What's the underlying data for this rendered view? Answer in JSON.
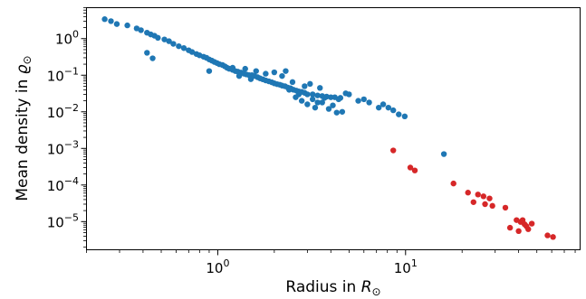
{
  "chart_data": {
    "type": "scatter",
    "xlabel_prefix": "Radius in ",
    "xlabel_symbol": "R",
    "ylabel_prefix": "Mean density in ",
    "ylabel_symbol": "ϱ",
    "subscript_symbol": "⊙",
    "xscale": "log",
    "yscale": "log",
    "xlim": [
      0.2,
      85
    ],
    "ylim": [
      1.7e-06,
      7
    ],
    "grid": false,
    "legend": "none",
    "x_ticks": [
      {
        "value": 1,
        "base": "10",
        "exp": "0"
      },
      {
        "value": 10,
        "base": "10",
        "exp": "1"
      }
    ],
    "y_ticks": [
      {
        "value": 1,
        "base": "10",
        "exp": "0"
      },
      {
        "value": 0.1,
        "base": "10",
        "exp": "−1"
      },
      {
        "value": 0.01,
        "base": "10",
        "exp": "−2"
      },
      {
        "value": 0.001,
        "base": "10",
        "exp": "−3"
      },
      {
        "value": 0.0001,
        "base": "10",
        "exp": "−4"
      },
      {
        "value": 1e-05,
        "base": "10",
        "exp": "−5"
      }
    ],
    "series": [
      {
        "color": "#1f77b4",
        "points": [
          [
            0.25,
            3.4
          ],
          [
            0.27,
            3.0
          ],
          [
            0.29,
            2.5
          ],
          [
            0.33,
            2.3
          ],
          [
            0.37,
            1.9
          ],
          [
            0.39,
            1.7
          ],
          [
            0.42,
            1.45
          ],
          [
            0.44,
            1.3
          ],
          [
            0.46,
            1.2
          ],
          [
            0.48,
            1.05
          ],
          [
            0.52,
            0.95
          ],
          [
            0.55,
            0.85
          ],
          [
            0.58,
            0.72
          ],
          [
            0.62,
            0.62
          ],
          [
            0.66,
            0.55
          ],
          [
            0.7,
            0.48
          ],
          [
            0.73,
            0.43
          ],
          [
            0.77,
            0.38
          ],
          [
            0.8,
            0.35
          ],
          [
            0.84,
            0.32
          ],
          [
            0.87,
            0.3
          ],
          [
            0.9,
            0.27
          ],
          [
            0.93,
            0.25
          ],
          [
            0.96,
            0.23
          ],
          [
            0.99,
            0.215
          ],
          [
            1.02,
            0.2
          ],
          [
            1.06,
            0.19
          ],
          [
            1.09,
            0.175
          ],
          [
            1.12,
            0.16
          ],
          [
            1.15,
            0.15
          ],
          [
            1.2,
            0.14
          ],
          [
            1.24,
            0.13
          ],
          [
            1.28,
            0.125
          ],
          [
            1.33,
            0.118
          ],
          [
            1.38,
            0.11
          ],
          [
            1.42,
            0.105
          ],
          [
            1.47,
            0.1
          ],
          [
            1.52,
            0.1
          ],
          [
            1.57,
            0.095
          ],
          [
            1.63,
            0.088
          ],
          [
            1.68,
            0.082
          ],
          [
            1.74,
            0.077
          ],
          [
            1.8,
            0.072
          ],
          [
            1.87,
            0.068
          ],
          [
            1.94,
            0.064
          ],
          [
            2.0,
            0.06
          ],
          [
            2.07,
            0.057
          ],
          [
            2.14,
            0.055
          ],
          [
            2.2,
            0.052
          ],
          [
            2.28,
            0.05
          ],
          [
            2.36,
            0.046
          ],
          [
            2.44,
            0.044
          ],
          [
            2.53,
            0.04
          ],
          [
            2.62,
            0.038
          ],
          [
            2.7,
            0.036
          ],
          [
            2.8,
            0.035
          ],
          [
            2.9,
            0.033
          ],
          [
            3.0,
            0.03
          ],
          [
            3.2,
            0.03
          ],
          [
            3.4,
            0.028
          ],
          [
            3.6,
            0.027
          ],
          [
            3.8,
            0.026
          ],
          [
            4.0,
            0.025
          ],
          [
            4.2,
            0.025
          ],
          [
            4.5,
            0.024
          ],
          [
            0.42,
            0.41
          ],
          [
            0.45,
            0.29
          ],
          [
            0.9,
            0.13
          ],
          [
            1.3,
            0.095
          ],
          [
            1.5,
            0.078
          ],
          [
            1.8,
            0.11
          ],
          [
            2.2,
            0.095
          ],
          [
            2.5,
            0.065
          ],
          [
            2.9,
            0.05
          ],
          [
            3.1,
            0.058
          ],
          [
            3.5,
            0.045
          ],
          [
            1.6,
            0.13
          ],
          [
            2.0,
            0.12
          ],
          [
            2.3,
            0.13
          ],
          [
            1.2,
            0.16
          ],
          [
            1.4,
            0.15
          ],
          [
            2.6,
            0.025
          ],
          [
            2.8,
            0.02
          ],
          [
            3.0,
            0.016
          ],
          [
            3.2,
            0.022
          ],
          [
            3.3,
            0.013
          ],
          [
            3.6,
            0.018
          ],
          [
            3.9,
            0.012
          ],
          [
            4.1,
            0.015
          ],
          [
            4.3,
            0.0095
          ],
          [
            4.6,
            0.01
          ],
          [
            4.8,
            0.032
          ],
          [
            5.0,
            0.03
          ],
          [
            5.6,
            0.02
          ],
          [
            6.0,
            0.022
          ],
          [
            6.4,
            0.018
          ],
          [
            7.2,
            0.013
          ],
          [
            7.6,
            0.016
          ],
          [
            8.1,
            0.013
          ],
          [
            8.6,
            0.011
          ],
          [
            9.2,
            0.0085
          ],
          [
            9.9,
            0.0075
          ],
          [
            2.4,
            0.04
          ],
          [
            2.7,
            0.03
          ],
          [
            3.4,
            0.018
          ],
          [
            3.7,
            0.024
          ],
          [
            4.4,
            0.022
          ],
          [
            16,
            0.0007
          ]
        ]
      },
      {
        "color": "#d62728",
        "points": [
          [
            8.6,
            0.00088
          ],
          [
            10.6,
            0.0003
          ],
          [
            11.2,
            0.00025
          ],
          [
            18,
            0.00011
          ],
          [
            21.5,
            6.2e-05
          ],
          [
            23,
            3.4e-05
          ],
          [
            24.3,
            5.5e-05
          ],
          [
            26,
            4.9e-05
          ],
          [
            26.5,
            3e-05
          ],
          [
            28,
            4.3e-05
          ],
          [
            29,
            2.7e-05
          ],
          [
            34,
            2.4e-05
          ],
          [
            36,
            6.8e-06
          ],
          [
            39,
            1.1e-05
          ],
          [
            40,
            5.5e-06
          ],
          [
            41,
            9.8e-06
          ],
          [
            42,
            1.1e-05
          ],
          [
            43,
            8.5e-06
          ],
          [
            44,
            7.5e-06
          ],
          [
            45,
            6.2e-06
          ],
          [
            47,
            8.8e-06
          ],
          [
            57,
            4.2e-06
          ],
          [
            61,
            3.8e-06
          ]
        ]
      }
    ]
  }
}
